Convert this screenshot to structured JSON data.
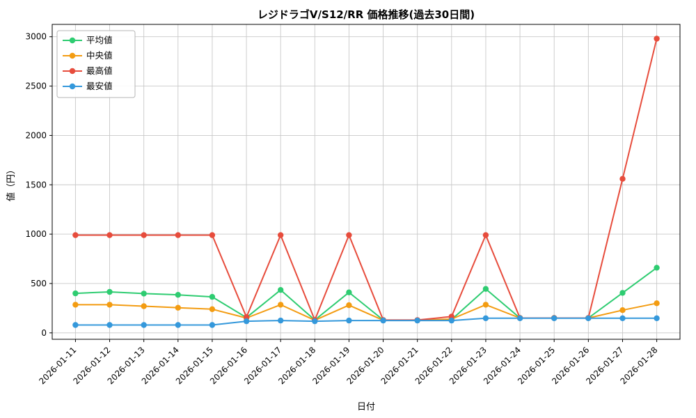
{
  "chart_data": {
    "type": "line",
    "title": "レジドラゴV/S12/RR 価格推移(過去30日間)",
    "xlabel": "日付",
    "ylabel": "値（円）",
    "x": [
      "2026-01-11",
      "2026-01-12",
      "2026-01-13",
      "2026-01-14",
      "2026-01-15",
      "2026-01-16",
      "2026-01-17",
      "2026-01-18",
      "2026-01-19",
      "2026-01-20",
      "2026-01-21",
      "2026-01-22",
      "2026-01-23",
      "2026-01-24",
      "2026-01-25",
      "2026-01-26",
      "2026-01-27",
      "2026-01-28"
    ],
    "series": [
      {
        "id": "average",
        "name": "平均値",
        "color": "#2ecc71",
        "values": [
          400,
          415,
          398,
          385,
          365,
          155,
          435,
          130,
          410,
          130,
          128,
          135,
          445,
          150,
          150,
          150,
          405,
          660
        ]
      },
      {
        "id": "median",
        "name": "中央値",
        "color": "#f39c12",
        "values": [
          285,
          285,
          270,
          255,
          240,
          150,
          285,
          128,
          280,
          128,
          128,
          140,
          285,
          150,
          150,
          150,
          230,
          300
        ]
      },
      {
        "id": "highest",
        "name": "最高値",
        "color": "#e74c3c",
        "values": [
          990,
          990,
          990,
          990,
          990,
          160,
          990,
          130,
          990,
          130,
          130,
          165,
          990,
          150,
          150,
          150,
          1560,
          2980
        ]
      },
      {
        "id": "lowest",
        "name": "最安値",
        "color": "#3498db",
        "values": [
          80,
          80,
          80,
          80,
          80,
          118,
          125,
          118,
          125,
          125,
          125,
          125,
          148,
          148,
          148,
          148,
          148,
          148
        ]
      }
    ],
    "yticks": [
      0,
      500,
      1000,
      1500,
      2000,
      2500,
      3000
    ],
    "ylim": [
      0,
      3000
    ],
    "grid": true,
    "legend_position": "upper left",
    "marker": "circle",
    "background_color": "#ffffff"
  }
}
